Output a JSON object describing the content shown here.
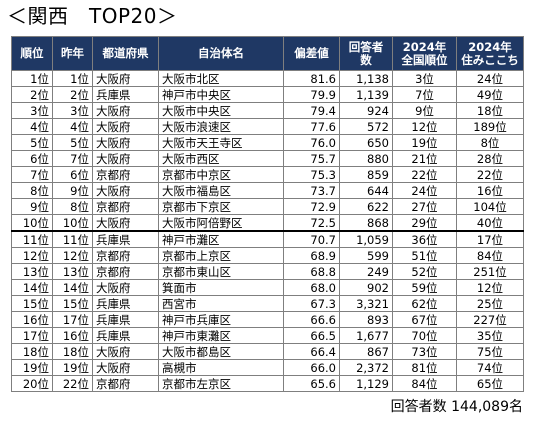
{
  "title": "＜関西　TOP20＞",
  "columns": [
    "順位",
    "昨年",
    "都道府県",
    "自治体名",
    "偏差値",
    "回答者\n数",
    "2024年\n全国順位",
    "2024年\n住みここち"
  ],
  "rows": [
    {
      "rank": "1位",
      "prev": "1位",
      "pref": "大阪府",
      "city": "大阪市北区",
      "dev": "81.6",
      "resp": "1,138",
      "nat": "3位",
      "live": "24位"
    },
    {
      "rank": "2位",
      "prev": "2位",
      "pref": "兵庫県",
      "city": "神戸市中央区",
      "dev": "79.9",
      "resp": "1,139",
      "nat": "7位",
      "live": "49位"
    },
    {
      "rank": "3位",
      "prev": "3位",
      "pref": "大阪府",
      "city": "大阪市中央区",
      "dev": "79.4",
      "resp": "924",
      "nat": "9位",
      "live": "18位"
    },
    {
      "rank": "4位",
      "prev": "4位",
      "pref": "大阪府",
      "city": "大阪市浪速区",
      "dev": "77.6",
      "resp": "572",
      "nat": "12位",
      "live": "189位"
    },
    {
      "rank": "5位",
      "prev": "5位",
      "pref": "大阪府",
      "city": "大阪市天王寺区",
      "dev": "76.0",
      "resp": "650",
      "nat": "19位",
      "live": "8位"
    },
    {
      "rank": "6位",
      "prev": "7位",
      "pref": "大阪府",
      "city": "大阪市西区",
      "dev": "75.7",
      "resp": "880",
      "nat": "21位",
      "live": "28位"
    },
    {
      "rank": "7位",
      "prev": "6位",
      "pref": "京都府",
      "city": "京都市中京区",
      "dev": "75.3",
      "resp": "859",
      "nat": "22位",
      "live": "22位"
    },
    {
      "rank": "8位",
      "prev": "9位",
      "pref": "大阪府",
      "city": "大阪市福島区",
      "dev": "73.7",
      "resp": "644",
      "nat": "24位",
      "live": "16位"
    },
    {
      "rank": "9位",
      "prev": "8位",
      "pref": "京都府",
      "city": "京都市下京区",
      "dev": "72.9",
      "resp": "622",
      "nat": "27位",
      "live": "104位"
    },
    {
      "rank": "10位",
      "prev": "10位",
      "pref": "大阪府",
      "city": "大阪市阿倍野区",
      "dev": "72.5",
      "resp": "868",
      "nat": "29位",
      "live": "40位"
    },
    {
      "rank": "11位",
      "prev": "11位",
      "pref": "兵庫県",
      "city": "神戸市灘区",
      "dev": "70.7",
      "resp": "1,059",
      "nat": "36位",
      "live": "17位"
    },
    {
      "rank": "12位",
      "prev": "12位",
      "pref": "京都府",
      "city": "京都市上京区",
      "dev": "68.9",
      "resp": "599",
      "nat": "51位",
      "live": "84位"
    },
    {
      "rank": "13位",
      "prev": "13位",
      "pref": "京都府",
      "city": "京都市東山区",
      "dev": "68.8",
      "resp": "249",
      "nat": "52位",
      "live": "251位"
    },
    {
      "rank": "14位",
      "prev": "14位",
      "pref": "大阪府",
      "city": "箕面市",
      "dev": "68.0",
      "resp": "902",
      "nat": "59位",
      "live": "12位"
    },
    {
      "rank": "15位",
      "prev": "15位",
      "pref": "兵庫県",
      "city": "西宮市",
      "dev": "67.3",
      "resp": "3,321",
      "nat": "62位",
      "live": "25位"
    },
    {
      "rank": "16位",
      "prev": "17位",
      "pref": "兵庫県",
      "city": "神戸市兵庫区",
      "dev": "66.6",
      "resp": "893",
      "nat": "67位",
      "live": "227位"
    },
    {
      "rank": "17位",
      "prev": "16位",
      "pref": "兵庫県",
      "city": "神戸市東灘区",
      "dev": "66.5",
      "resp": "1,677",
      "nat": "70位",
      "live": "35位"
    },
    {
      "rank": "18位",
      "prev": "18位",
      "pref": "大阪府",
      "city": "大阪市都島区",
      "dev": "66.4",
      "resp": "867",
      "nat": "73位",
      "live": "75位"
    },
    {
      "rank": "19位",
      "prev": "19位",
      "pref": "大阪府",
      "city": "高槻市",
      "dev": "66.0",
      "resp": "2,372",
      "nat": "81位",
      "live": "74位"
    },
    {
      "rank": "20位",
      "prev": "22位",
      "pref": "京都府",
      "city": "京都市左京区",
      "dev": "65.6",
      "resp": "1,129",
      "nat": "84位",
      "live": "65位"
    }
  ],
  "footer": "回答者数 144,089名",
  "colors": {
    "header_bg": "#1f3864",
    "header_text": "#ffffff",
    "border": "#7f7f7f"
  }
}
